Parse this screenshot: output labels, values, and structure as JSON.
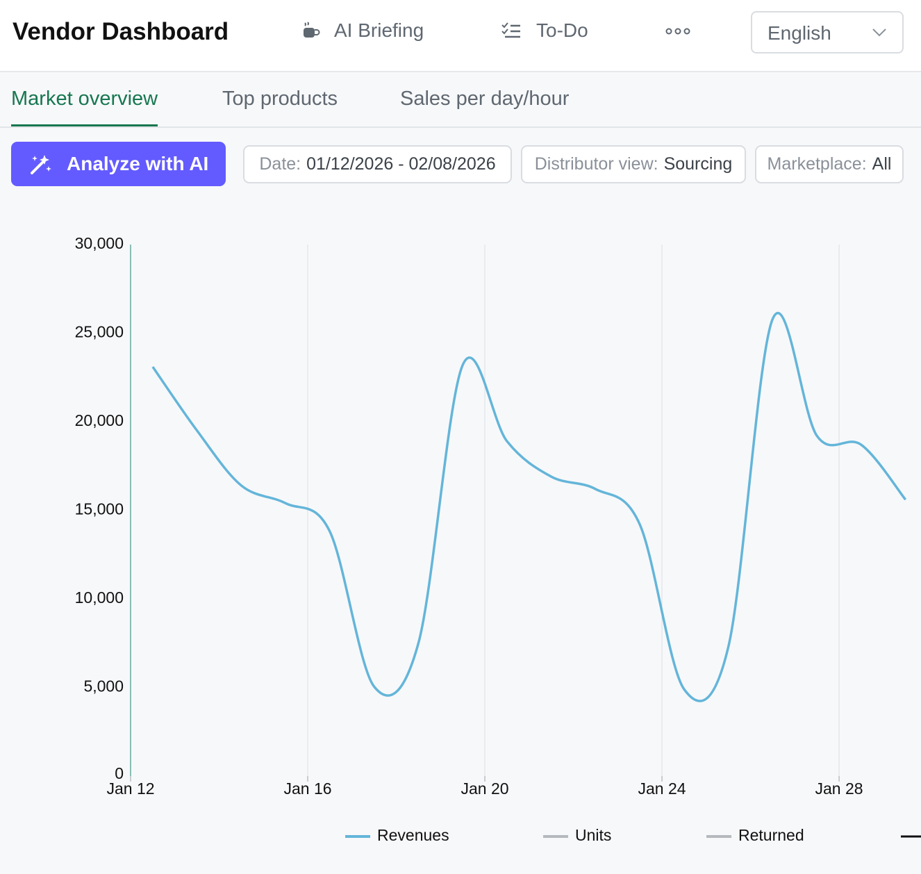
{
  "header": {
    "title": "Vendor Dashboard",
    "nav": [
      "AI Briefing",
      "To-Do"
    ],
    "language": "English"
  },
  "tabs": [
    "Market overview",
    "Top products",
    "Sales per day/hour"
  ],
  "active_tab": 0,
  "toolbar": {
    "button": "Analyze with AI",
    "filters": [
      {
        "label": "Date:",
        "value": "01/12/2026 - 02/08/2026"
      },
      {
        "label": "Distributor view:",
        "value": "Sourcing"
      },
      {
        "label": "Marketplace:",
        "value": "All"
      }
    ]
  },
  "chart_data": {
    "type": "line",
    "x": [
      12.5,
      13.5,
      14.5,
      15.5,
      16.5,
      17.5,
      18.5,
      19.5,
      20.5,
      21.5,
      22.5,
      23.5,
      24.5,
      25.5,
      26.5,
      27.5,
      28.5,
      29.5
    ],
    "series": [
      {
        "name": "Revenues",
        "color": "#64b5d9",
        "values": [
          23100,
          19500,
          16400,
          15400,
          13800,
          5050,
          7500,
          23200,
          18900,
          16900,
          16200,
          14200,
          4900,
          7300,
          25800,
          19200,
          18700,
          15600
        ]
      }
    ],
    "hidden_series": [
      {
        "name": "Units",
        "color": "#b5b8bc"
      },
      {
        "name": "Returned",
        "color": "#b5b8bc"
      }
    ],
    "xlim": [
      12,
      29.85
    ],
    "xticks": [
      {
        "value": 12,
        "label": "Jan 12"
      },
      {
        "value": 16,
        "label": "Jan 16"
      },
      {
        "value": 20,
        "label": "Jan 20"
      },
      {
        "value": 24,
        "label": "Jan 24"
      },
      {
        "value": 28,
        "label": "Jan 28"
      }
    ],
    "ylim": [
      0,
      30000
    ],
    "yticks": [
      0,
      {
        "value": 5000,
        "label": "5,000"
      },
      {
        "value": 10000,
        "label": "10,000"
      },
      {
        "value": 15000,
        "label": "15,000"
      },
      {
        "value": 20000,
        "label": "20,000"
      },
      {
        "value": 25000,
        "label": "25,000"
      },
      {
        "value": 30000,
        "label": "30,000"
      }
    ],
    "grid": true
  }
}
